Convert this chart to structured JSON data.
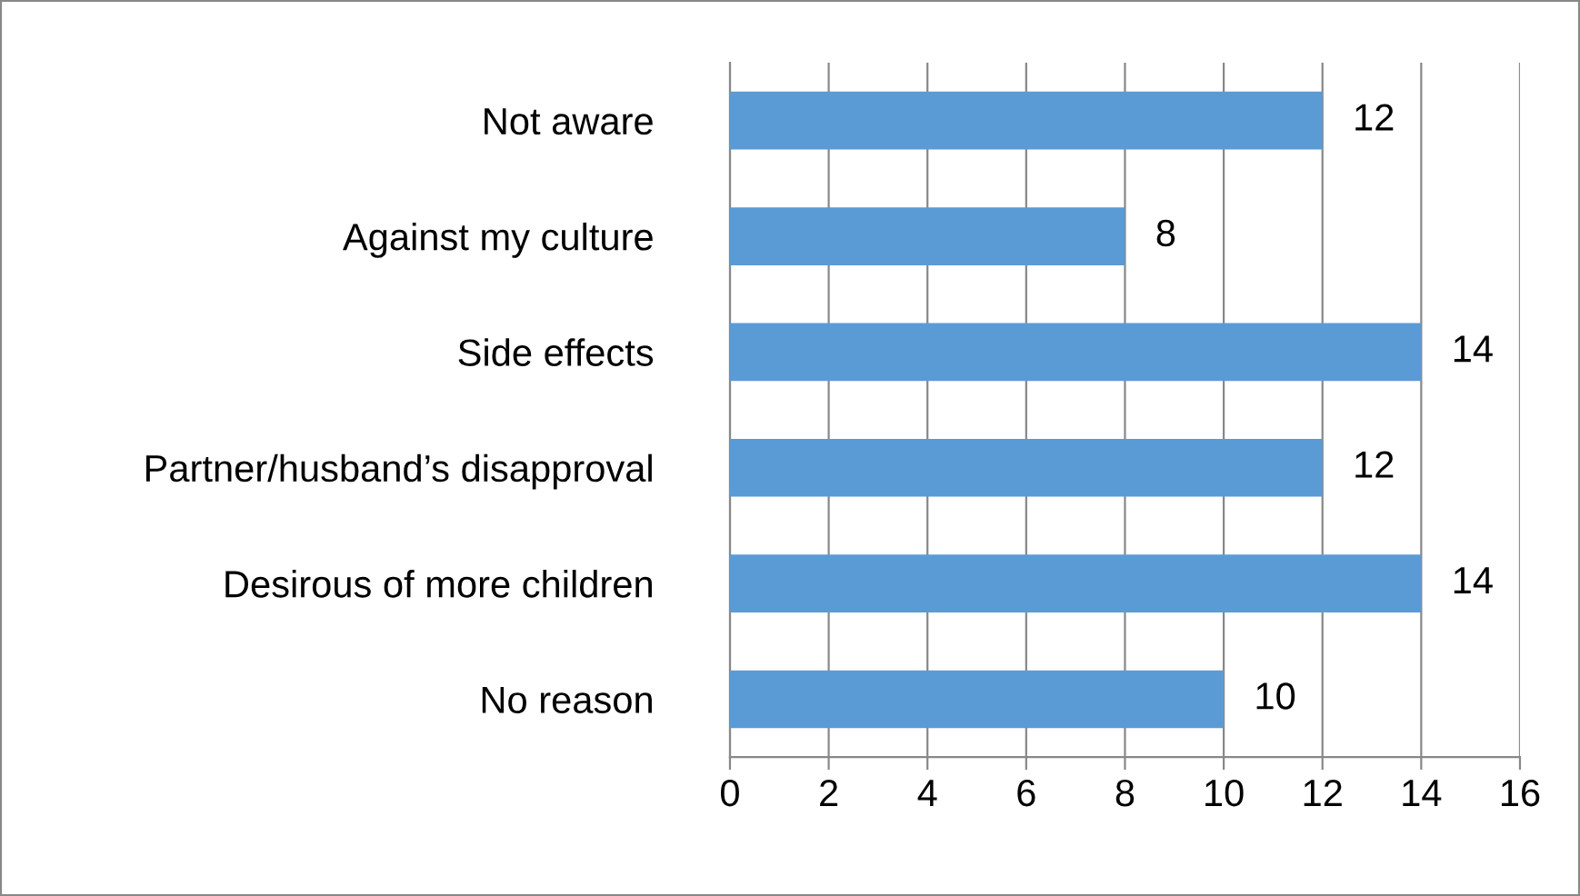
{
  "chart_data": {
    "type": "bar",
    "orientation": "horizontal",
    "categories": [
      "Not aware",
      "Against my culture",
      "Side effects",
      "Partner/husband’s disapproval",
      "Desirous of more children",
      "No reason"
    ],
    "values": [
      12,
      8,
      14,
      12,
      14,
      10
    ],
    "color": "#5b9bd5",
    "xlim": [
      0,
      16
    ],
    "xticks": [
      0,
      2,
      4,
      6,
      8,
      10,
      12,
      14,
      16
    ],
    "grid": "x",
    "data_labels": true
  }
}
